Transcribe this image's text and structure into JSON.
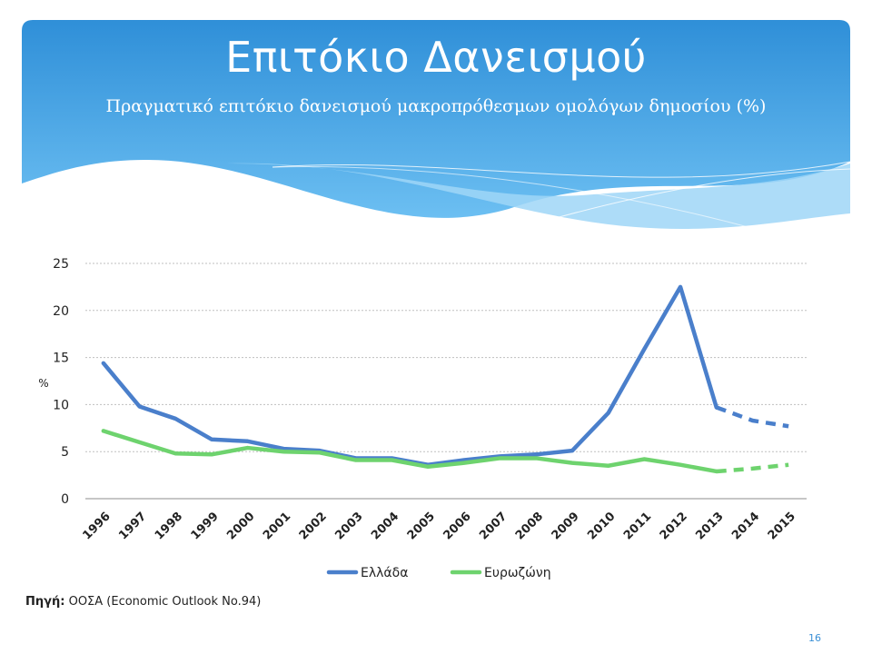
{
  "slide": {
    "title": "Επιτόκιο Δανεισμού",
    "subtitle": "Πραγματικό επιτόκιο δανεισμού μακροπρόθεσμων ομολόγων δημοσίου (%)",
    "source_label": "Πηγή:",
    "source_text": " ΟΟΣΑ (Economic Outlook No.94)",
    "page_number": "16",
    "colors": {
      "header_top": "#2f8fd8",
      "header_bottom": "#5fb6f0",
      "greece": "#4a7fcb",
      "eurozone": "#6ed36e",
      "grid": "#bfbfbf"
    }
  },
  "chart_data": {
    "type": "line",
    "title": "",
    "xlabel": "",
    "ylabel": "%",
    "categories": [
      "1996",
      "1997",
      "1998",
      "1999",
      "2000",
      "2001",
      "2002",
      "2003",
      "2004",
      "2005",
      "2006",
      "2007",
      "2008",
      "2009",
      "2010",
      "2011",
      "2012",
      "2013",
      "2014",
      "2015"
    ],
    "ylim": [
      0,
      25
    ],
    "yticks": [
      0,
      5,
      10,
      15,
      20,
      25
    ],
    "grid": true,
    "legend_position": "bottom",
    "forecast_from_index": 17,
    "series": [
      {
        "name": "Ελλάδα",
        "color": "#4a7fcb",
        "values": [
          14.4,
          9.8,
          8.5,
          6.3,
          6.1,
          5.3,
          5.1,
          4.3,
          4.3,
          3.6,
          4.1,
          4.5,
          4.7,
          5.1,
          9.1,
          15.9,
          22.5,
          9.7,
          8.3,
          7.7
        ]
      },
      {
        "name": "Ευρωζώνη",
        "color": "#6ed36e",
        "values": [
          7.2,
          6.0,
          4.8,
          4.7,
          5.4,
          5.0,
          4.9,
          4.1,
          4.1,
          3.4,
          3.8,
          4.3,
          4.3,
          3.8,
          3.5,
          4.2,
          3.6,
          2.9,
          3.2,
          3.6
        ]
      }
    ]
  }
}
